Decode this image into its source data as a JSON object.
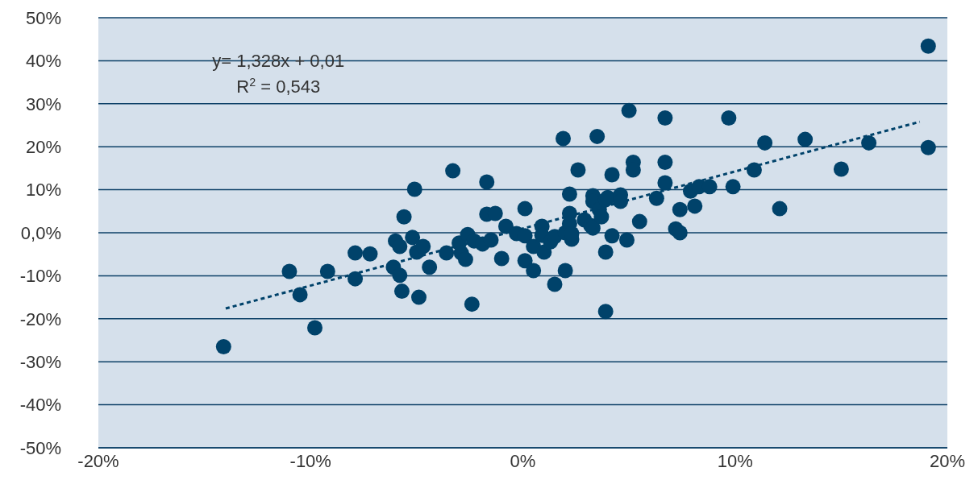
{
  "chart_data": {
    "type": "scatter",
    "annotations": [
      "y= 1,328x + 0,01",
      "R$^{2}$ = 0,543"
    ],
    "xlim": [
      -20,
      20
    ],
    "xticks": [
      {
        "value": -20,
        "label": "-20%"
      },
      {
        "value": -10,
        "label": "-10%"
      },
      {
        "value": 0,
        "label": "0%"
      },
      {
        "value": 10,
        "label": "10%"
      },
      {
        "value": 20,
        "label": "20%"
      }
    ],
    "ylim": [
      -50,
      50
    ],
    "yticks": [
      {
        "value": -50,
        "label": "-50%"
      },
      {
        "value": -40,
        "label": "-40%"
      },
      {
        "value": -30,
        "label": "-30%"
      },
      {
        "value": -20,
        "label": "-20%"
      },
      {
        "value": -10,
        "label": "-10%"
      },
      {
        "value": 0,
        "label": "0,0%"
      },
      {
        "value": 10,
        "label": "10%"
      },
      {
        "value": 20,
        "label": "20%"
      },
      {
        "value": 30,
        "label": "30%"
      },
      {
        "value": 40,
        "label": "40%"
      },
      {
        "value": 50,
        "label": "50%"
      }
    ],
    "grid": "y",
    "series": [
      {
        "color": "#00426a",
        "marker": "circle",
        "x": [
          -14.1,
          -11.0,
          -10.5,
          -9.8,
          -9.2,
          -7.9,
          -7.9,
          -7.2,
          -6.1,
          -6.0,
          -5.8,
          -5.8,
          -5.7,
          -5.6,
          -5.2,
          -5.1,
          -5.0,
          -4.9,
          -4.7,
          -4.4,
          -3.6,
          -3.3,
          -3.0,
          -2.9,
          -2.7,
          -2.6,
          -2.4,
          -2.3,
          -1.9,
          -1.7,
          -1.7,
          -1.5,
          -1.3,
          -1.0,
          -0.8,
          -0.3,
          0.1,
          0.1,
          0.1,
          0.5,
          0.5,
          0.9,
          0.9,
          1.0,
          1.3,
          1.5,
          1.5,
          1.9,
          2.0,
          2.0,
          2.2,
          2.2,
          2.2,
          2.3,
          2.3,
          2.6,
          2.9,
          3.2,
          3.3,
          3.3,
          3.3,
          3.5,
          3.6,
          3.7,
          3.9,
          3.9,
          3.9,
          4.0,
          4.2,
          4.2,
          4.6,
          4.6,
          4.9,
          5.0,
          5.2,
          5.2,
          5.5,
          6.3,
          6.7,
          6.7,
          6.7,
          7.2,
          7.4,
          7.4,
          7.9,
          8.1,
          8.3,
          8.8,
          9.7,
          9.9,
          11.4,
          10.9,
          12.1,
          13.3,
          15.0,
          16.3,
          19.1,
          19.1
        ],
        "values": [
          -26.5,
          -9.0,
          -14.4,
          -22.1,
          -9.0,
          -4.7,
          -10.7,
          -4.9,
          -8.0,
          -1.9,
          -3.2,
          -9.9,
          -13.6,
          3.7,
          -1.1,
          10.1,
          -4.5,
          -15.0,
          -3.2,
          -8.0,
          -4.7,
          14.4,
          -2.4,
          -4.7,
          -6.2,
          -0.4,
          -16.6,
          -1.9,
          -2.6,
          11.8,
          4.3,
          -1.7,
          4.5,
          -6.0,
          1.5,
          -0.2,
          5.6,
          -0.7,
          -6.5,
          -3.2,
          -8.8,
          1.5,
          -0.6,
          -4.5,
          -2.1,
          -0.9,
          -12.0,
          21.9,
          0.0,
          -8.8,
          9.0,
          4.5,
          2.1,
          -1.5,
          -0.2,
          14.6,
          3.0,
          1.7,
          1.1,
          8.6,
          7.3,
          22.4,
          5.4,
          3.7,
          7.7,
          -4.5,
          -18.3,
          8.2,
          13.5,
          -0.7,
          8.8,
          7.3,
          -1.7,
          28.4,
          16.4,
          14.6,
          2.6,
          8.0,
          26.7,
          16.4,
          11.6,
          0.9,
          0.0,
          5.4,
          9.7,
          6.2,
          10.7,
          10.7,
          26.7,
          10.7,
          20.9,
          14.6,
          5.6,
          21.7,
          14.8,
          20.9,
          43.4,
          19.8
        ]
      },
      {
        "type": "line",
        "color": "#00426a",
        "marker": "none",
        "line_style": "dashed",
        "x": [
          -14.0,
          18.7
        ],
        "values": [
          -17.6,
          25.8
        ]
      }
    ]
  }
}
